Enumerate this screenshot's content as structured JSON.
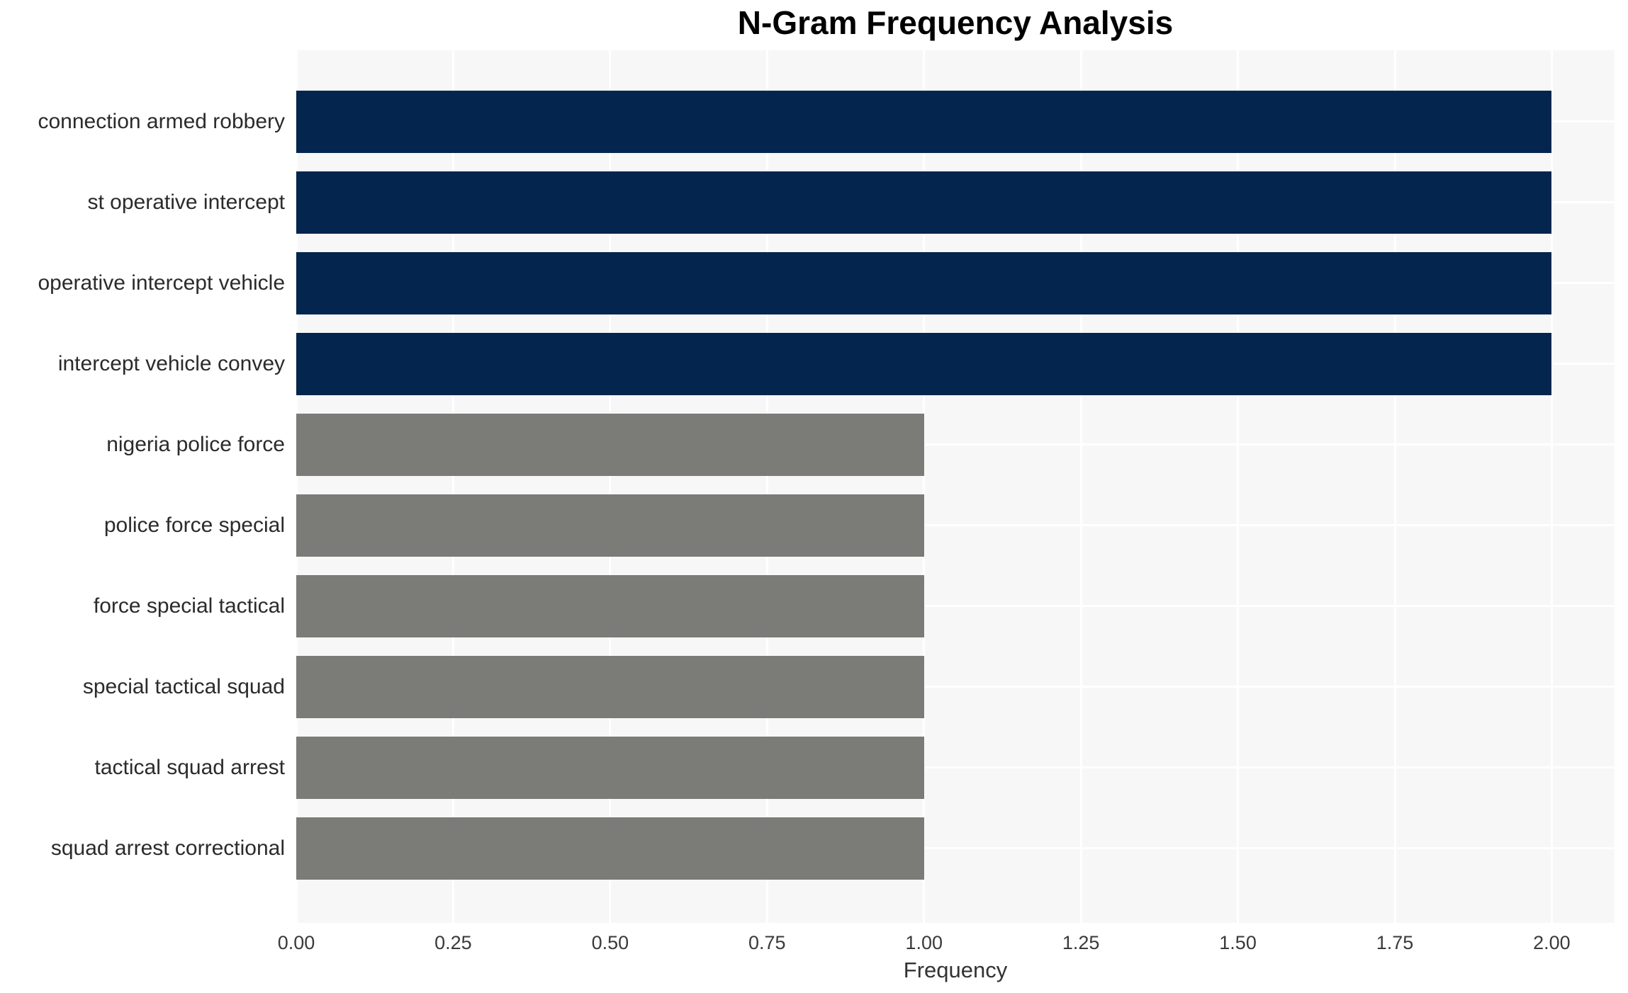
{
  "chart_data": {
    "type": "bar",
    "orientation": "horizontal",
    "title": "N-Gram Frequency Analysis",
    "xlabel": "Frequency",
    "ylabel": "",
    "categories": [
      "connection armed robbery",
      "st operative intercept",
      "operative intercept vehicle",
      "intercept vehicle convey",
      "nigeria police force",
      "police force special",
      "force special tactical",
      "special tactical squad",
      "tactical squad arrest",
      "squad arrest correctional"
    ],
    "values": [
      2,
      2,
      2,
      2,
      1,
      1,
      1,
      1,
      1,
      1
    ],
    "bar_colors": [
      "#03254e",
      "#03254e",
      "#03254e",
      "#03254e",
      "#7b7b77",
      "#7b7b77",
      "#7b7b77",
      "#7b7b77",
      "#7b7b77",
      "#7b7b77"
    ],
    "xticks": [
      0,
      0.25,
      0.5,
      0.75,
      1.0,
      1.25,
      1.5,
      1.75,
      2.0
    ],
    "xtick_labels": [
      "0.00",
      "0.25",
      "0.50",
      "0.75",
      "1.00",
      "1.25",
      "1.50",
      "1.75",
      "2.00"
    ],
    "xlim": [
      0,
      2.1
    ],
    "grid": true,
    "legend": false,
    "colors": {
      "plot_background": "#f7f7f7",
      "grid_color": "#ffffff",
      "navy_bar": "#03254e",
      "gray_bar": "#7b7b77",
      "title_text": "#000000",
      "tick_text": "#3a3a3a",
      "category_text": "#2b2b2b"
    }
  }
}
